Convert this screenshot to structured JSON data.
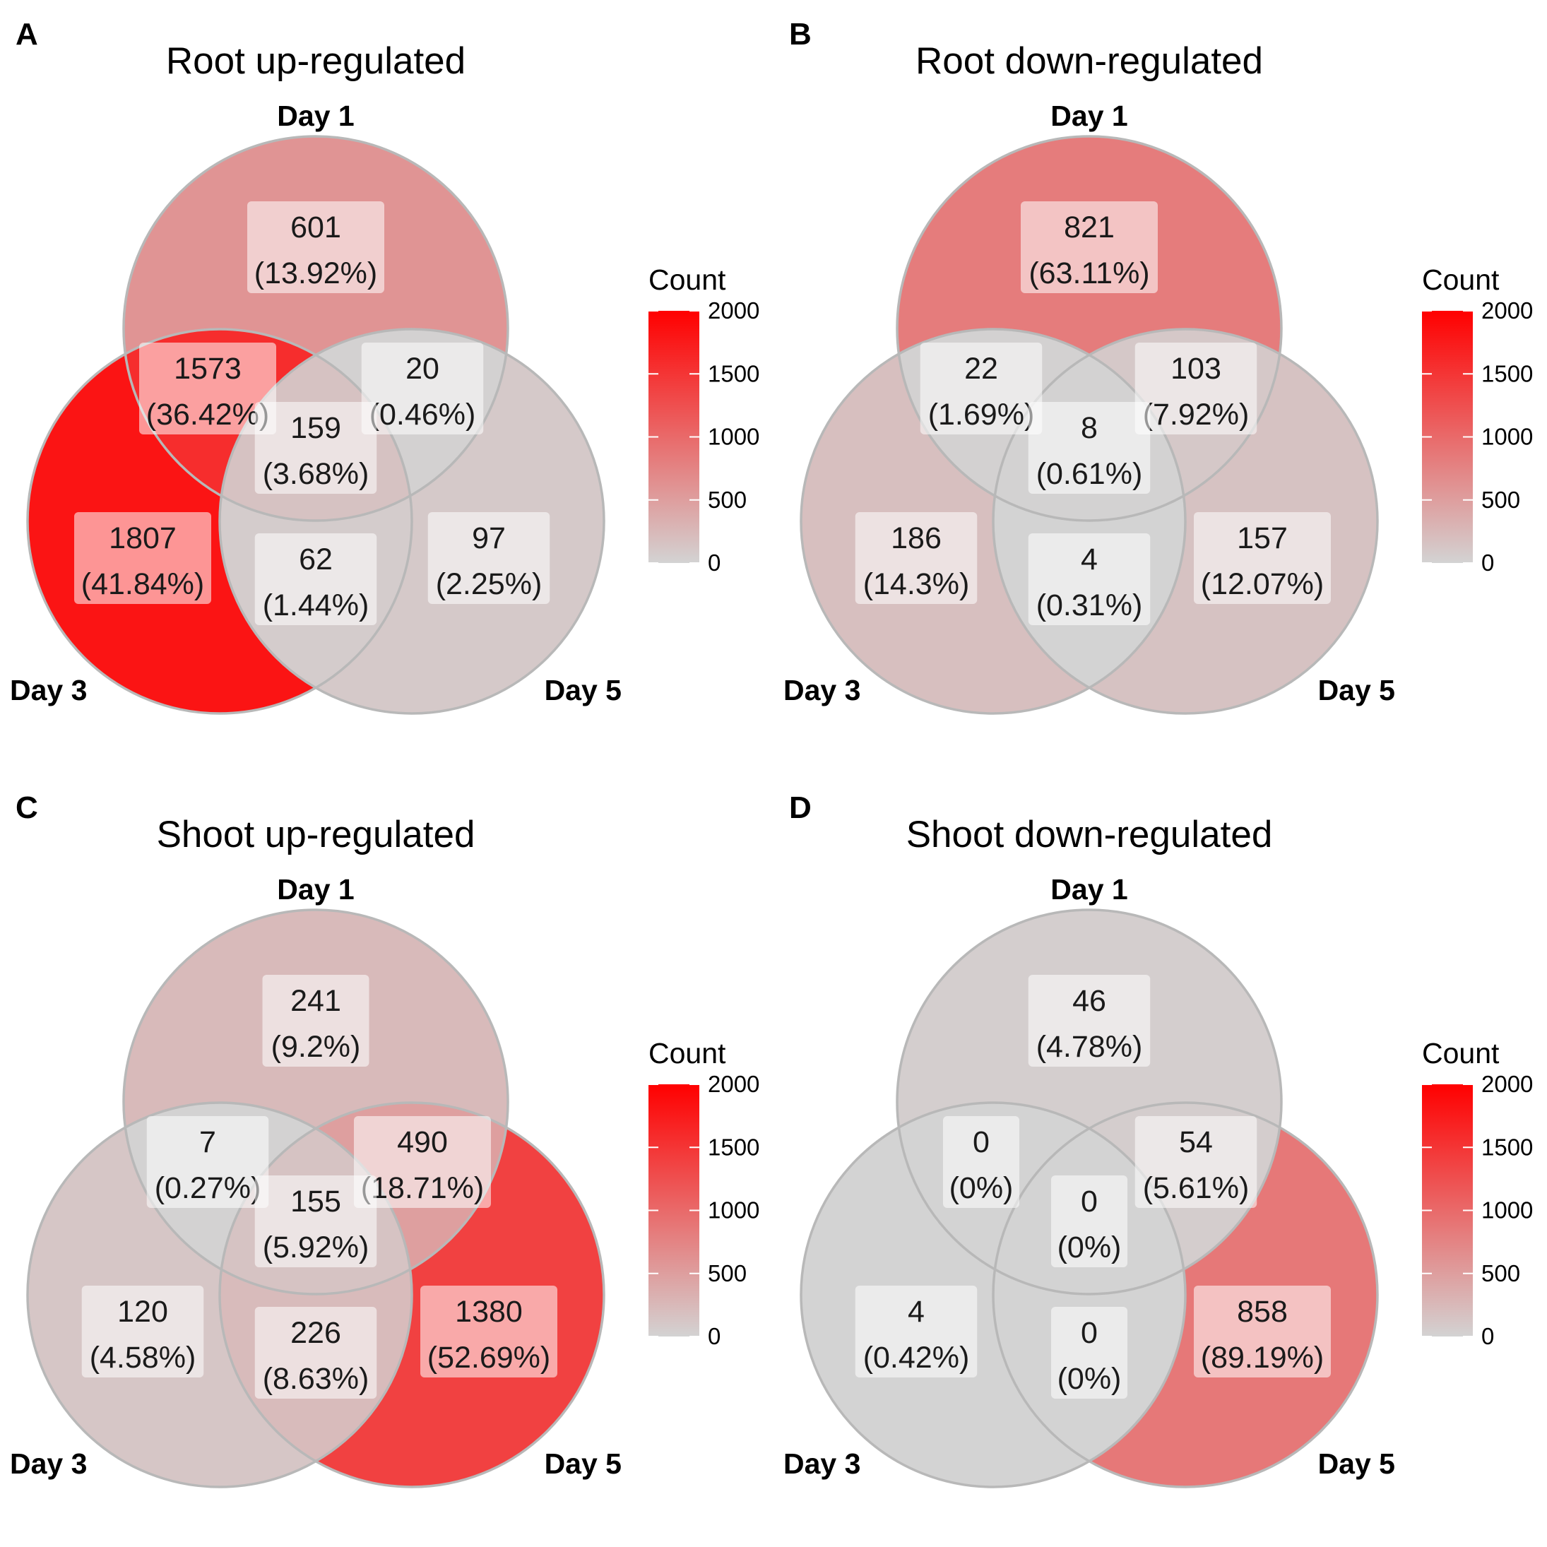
{
  "colors": {
    "scale_low": "#d3d3d3",
    "scale_high": "#ff0000",
    "circle_stroke": "#b8b8b8",
    "label_box": "#ffffff"
  },
  "legend": {
    "title": "Count",
    "ticks": [
      0,
      500,
      1000,
      1500,
      2000
    ],
    "tick_labels": [
      "0",
      "500",
      "1000",
      "1500",
      "2000"
    ],
    "limits": [
      0,
      2000
    ]
  },
  "sets": [
    "Day 1",
    "Day 3",
    "Day 5"
  ],
  "chart_data": [
    {
      "type": "venn",
      "panel": "A",
      "title": "Root up-regulated",
      "regions": [
        {
          "sets": [
            "Day 1"
          ],
          "count": 601,
          "percent": "(13.92%)"
        },
        {
          "sets": [
            "Day 3"
          ],
          "count": 1807,
          "percent": "(41.84%)"
        },
        {
          "sets": [
            "Day 5"
          ],
          "count": 97,
          "percent": "(2.25%)"
        },
        {
          "sets": [
            "Day 1",
            "Day 3"
          ],
          "count": 1573,
          "percent": "(36.42%)"
        },
        {
          "sets": [
            "Day 1",
            "Day 5"
          ],
          "count": 20,
          "percent": "(0.46%)"
        },
        {
          "sets": [
            "Day 3",
            "Day 5"
          ],
          "count": 62,
          "percent": "(1.44%)"
        },
        {
          "sets": [
            "Day 1",
            "Day 3",
            "Day 5"
          ],
          "count": 159,
          "percent": "(3.68%)"
        }
      ]
    },
    {
      "type": "venn",
      "panel": "B",
      "title": "Root down-regulated",
      "regions": [
        {
          "sets": [
            "Day 1"
          ],
          "count": 821,
          "percent": "(63.11%)"
        },
        {
          "sets": [
            "Day 3"
          ],
          "count": 186,
          "percent": "(14.3%)"
        },
        {
          "sets": [
            "Day 5"
          ],
          "count": 157,
          "percent": "(12.07%)"
        },
        {
          "sets": [
            "Day 1",
            "Day 3"
          ],
          "count": 22,
          "percent": "(1.69%)"
        },
        {
          "sets": [
            "Day 1",
            "Day 5"
          ],
          "count": 103,
          "percent": "(7.92%)"
        },
        {
          "sets": [
            "Day 3",
            "Day 5"
          ],
          "count": 4,
          "percent": "(0.31%)"
        },
        {
          "sets": [
            "Day 1",
            "Day 3",
            "Day 5"
          ],
          "count": 8,
          "percent": "(0.61%)"
        }
      ]
    },
    {
      "type": "venn",
      "panel": "C",
      "title": "Shoot up-regulated",
      "regions": [
        {
          "sets": [
            "Day 1"
          ],
          "count": 241,
          "percent": "(9.2%)"
        },
        {
          "sets": [
            "Day 3"
          ],
          "count": 120,
          "percent": "(4.58%)"
        },
        {
          "sets": [
            "Day 5"
          ],
          "count": 1380,
          "percent": "(52.69%)"
        },
        {
          "sets": [
            "Day 1",
            "Day 3"
          ],
          "count": 7,
          "percent": "(0.27%)"
        },
        {
          "sets": [
            "Day 1",
            "Day 5"
          ],
          "count": 490,
          "percent": "(18.71%)"
        },
        {
          "sets": [
            "Day 3",
            "Day 5"
          ],
          "count": 226,
          "percent": "(8.63%)"
        },
        {
          "sets": [
            "Day 1",
            "Day 3",
            "Day 5"
          ],
          "count": 155,
          "percent": "(5.92%)"
        }
      ]
    },
    {
      "type": "venn",
      "panel": "D",
      "title": "Shoot down-regulated",
      "regions": [
        {
          "sets": [
            "Day 1"
          ],
          "count": 46,
          "percent": "(4.78%)"
        },
        {
          "sets": [
            "Day 3"
          ],
          "count": 4,
          "percent": "(0.42%)"
        },
        {
          "sets": [
            "Day 5"
          ],
          "count": 858,
          "percent": "(89.19%)"
        },
        {
          "sets": [
            "Day 1",
            "Day 3"
          ],
          "count": 0,
          "percent": "(0%)"
        },
        {
          "sets": [
            "Day 1",
            "Day 5"
          ],
          "count": 54,
          "percent": "(5.61%)"
        },
        {
          "sets": [
            "Day 3",
            "Day 5"
          ],
          "count": 0,
          "percent": "(0%)"
        },
        {
          "sets": [
            "Day 1",
            "Day 3",
            "Day 5"
          ],
          "count": 0,
          "percent": "(0%)"
        }
      ]
    }
  ]
}
